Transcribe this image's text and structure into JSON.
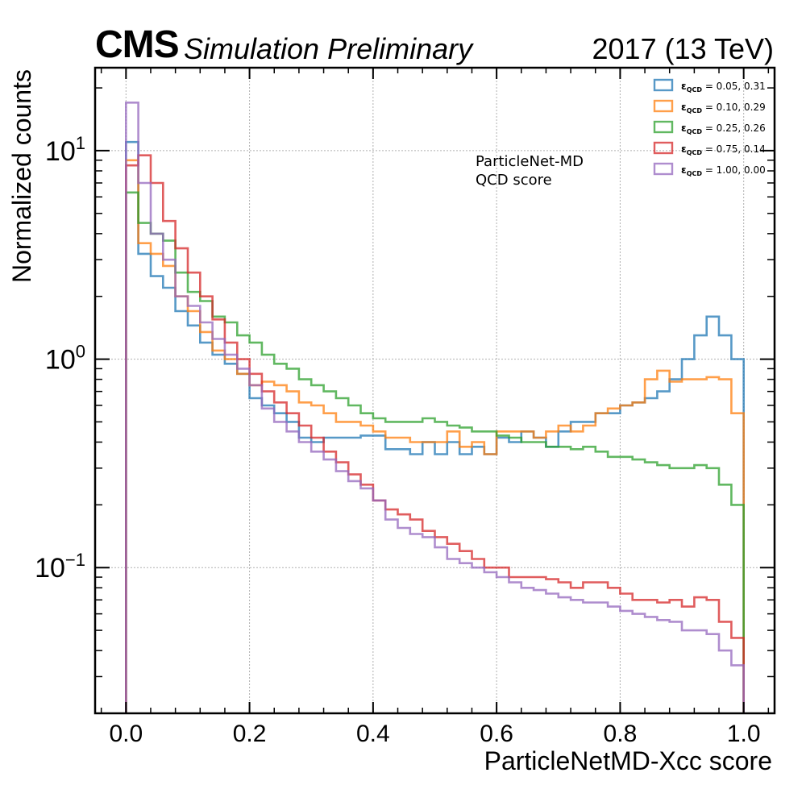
{
  "header": {
    "experiment": "CMS",
    "status": "Simulation Preliminary",
    "lumi": "2017 (13 TeV)"
  },
  "chart_data": {
    "type": "line",
    "xlabel": "ParticleNetMD-Xcc score",
    "ylabel": "Normalized counts",
    "yscale": "log",
    "xlim": [
      -0.05,
      1.05
    ],
    "ylim": [
      0.02,
      25
    ],
    "x_ticks": [
      "0.0",
      "0.2",
      "0.4",
      "0.6",
      "0.8",
      "1.0"
    ],
    "y_ticks": [
      {
        "value": 10,
        "base": "10",
        "exp": "1"
      },
      {
        "value": 1,
        "base": "10",
        "exp": "0"
      },
      {
        "value": 0.1,
        "base": "10",
        "exp": "−1"
      }
    ],
    "grid": true,
    "legend_position": "top-right",
    "annotation": [
      "ParticleNet-MD",
      "QCD score"
    ],
    "bins": {
      "start": 0.0,
      "end": 1.0,
      "count": 50
    },
    "series": [
      {
        "name_prefix": "ε",
        "name_sub": "QCD",
        "name_value": " = 0.05, 0.31",
        "color": "#1f77b4",
        "values": [
          11.0,
          3.2,
          2.5,
          2.2,
          1.7,
          1.45,
          1.2,
          1.05,
          0.95,
          0.85,
          0.65,
          0.6,
          0.55,
          0.5,
          0.42,
          0.4,
          0.42,
          0.42,
          0.42,
          0.43,
          0.43,
          0.37,
          0.37,
          0.35,
          0.4,
          0.35,
          0.4,
          0.35,
          0.38,
          0.35,
          0.42,
          0.4,
          0.45,
          0.42,
          0.38,
          0.45,
          0.5,
          0.5,
          0.55,
          0.55,
          0.6,
          0.62,
          0.65,
          0.7,
          0.8,
          1.0,
          1.3,
          1.6,
          1.3,
          1.0,
          0.55
        ]
      },
      {
        "name_prefix": "ε",
        "name_sub": "QCD",
        "name_value": " = 0.10, 0.29",
        "color": "#ff7f0e",
        "values": [
          9.0,
          3.6,
          3.2,
          2.8,
          2.0,
          1.7,
          1.35,
          1.1,
          1.0,
          0.85,
          0.75,
          0.78,
          0.75,
          0.7,
          0.62,
          0.6,
          0.55,
          0.5,
          0.5,
          0.48,
          0.45,
          0.42,
          0.42,
          0.4,
          0.4,
          0.4,
          0.45,
          0.38,
          0.4,
          0.35,
          0.45,
          0.45,
          0.45,
          0.42,
          0.45,
          0.48,
          0.45,
          0.48,
          0.55,
          0.58,
          0.6,
          0.62,
          0.8,
          0.88,
          0.78,
          0.8,
          0.8,
          0.82,
          0.8,
          0.55,
          0.22
        ]
      },
      {
        "name_prefix": "ε",
        "name_sub": "QCD",
        "name_value": " = 0.25, 0.26",
        "color": "#2ca02c",
        "values": [
          6.3,
          4.5,
          4.0,
          3.7,
          2.6,
          2.1,
          1.9,
          1.6,
          1.5,
          1.3,
          1.2,
          1.05,
          0.95,
          0.9,
          0.8,
          0.75,
          0.7,
          0.65,
          0.6,
          0.55,
          0.52,
          0.5,
          0.5,
          0.5,
          0.52,
          0.5,
          0.48,
          0.47,
          0.45,
          0.45,
          0.43,
          0.42,
          0.4,
          0.4,
          0.38,
          0.38,
          0.37,
          0.38,
          0.36,
          0.34,
          0.34,
          0.33,
          0.32,
          0.31,
          0.3,
          0.3,
          0.31,
          0.3,
          0.25,
          0.2,
          0.11
        ]
      },
      {
        "name_prefix": "ε",
        "name_sub": "QCD",
        "name_value": " = 0.75, 0.14",
        "color": "#d62728",
        "values": [
          8.5,
          9.5,
          7.0,
          4.6,
          3.4,
          2.6,
          2.0,
          1.55,
          1.2,
          1.0,
          0.85,
          0.7,
          0.62,
          0.55,
          0.48,
          0.42,
          0.36,
          0.32,
          0.28,
          0.25,
          0.21,
          0.19,
          0.18,
          0.17,
          0.15,
          0.14,
          0.13,
          0.12,
          0.11,
          0.1,
          0.1,
          0.09,
          0.09,
          0.09,
          0.088,
          0.085,
          0.08,
          0.085,
          0.085,
          0.08,
          0.075,
          0.07,
          0.07,
          0.068,
          0.07,
          0.065,
          0.072,
          0.07,
          0.055,
          0.046,
          0.025
        ]
      },
      {
        "name_prefix": "ε",
        "name_sub": "QCD",
        "name_value": " = 1.00, 0.00",
        "color": "#9467bd",
        "values": [
          17.0,
          7.0,
          4.0,
          3.0,
          2.0,
          1.8,
          1.5,
          1.25,
          1.05,
          0.9,
          0.75,
          0.58,
          0.5,
          0.45,
          0.4,
          0.36,
          0.33,
          0.29,
          0.26,
          0.24,
          0.21,
          0.17,
          0.155,
          0.145,
          0.14,
          0.125,
          0.11,
          0.105,
          0.1,
          0.095,
          0.09,
          0.085,
          0.08,
          0.078,
          0.075,
          0.072,
          0.07,
          0.068,
          0.068,
          0.065,
          0.062,
          0.06,
          0.058,
          0.056,
          0.055,
          0.05,
          0.05,
          0.048,
          0.04,
          0.034,
          0.022
        ]
      }
    ]
  }
}
